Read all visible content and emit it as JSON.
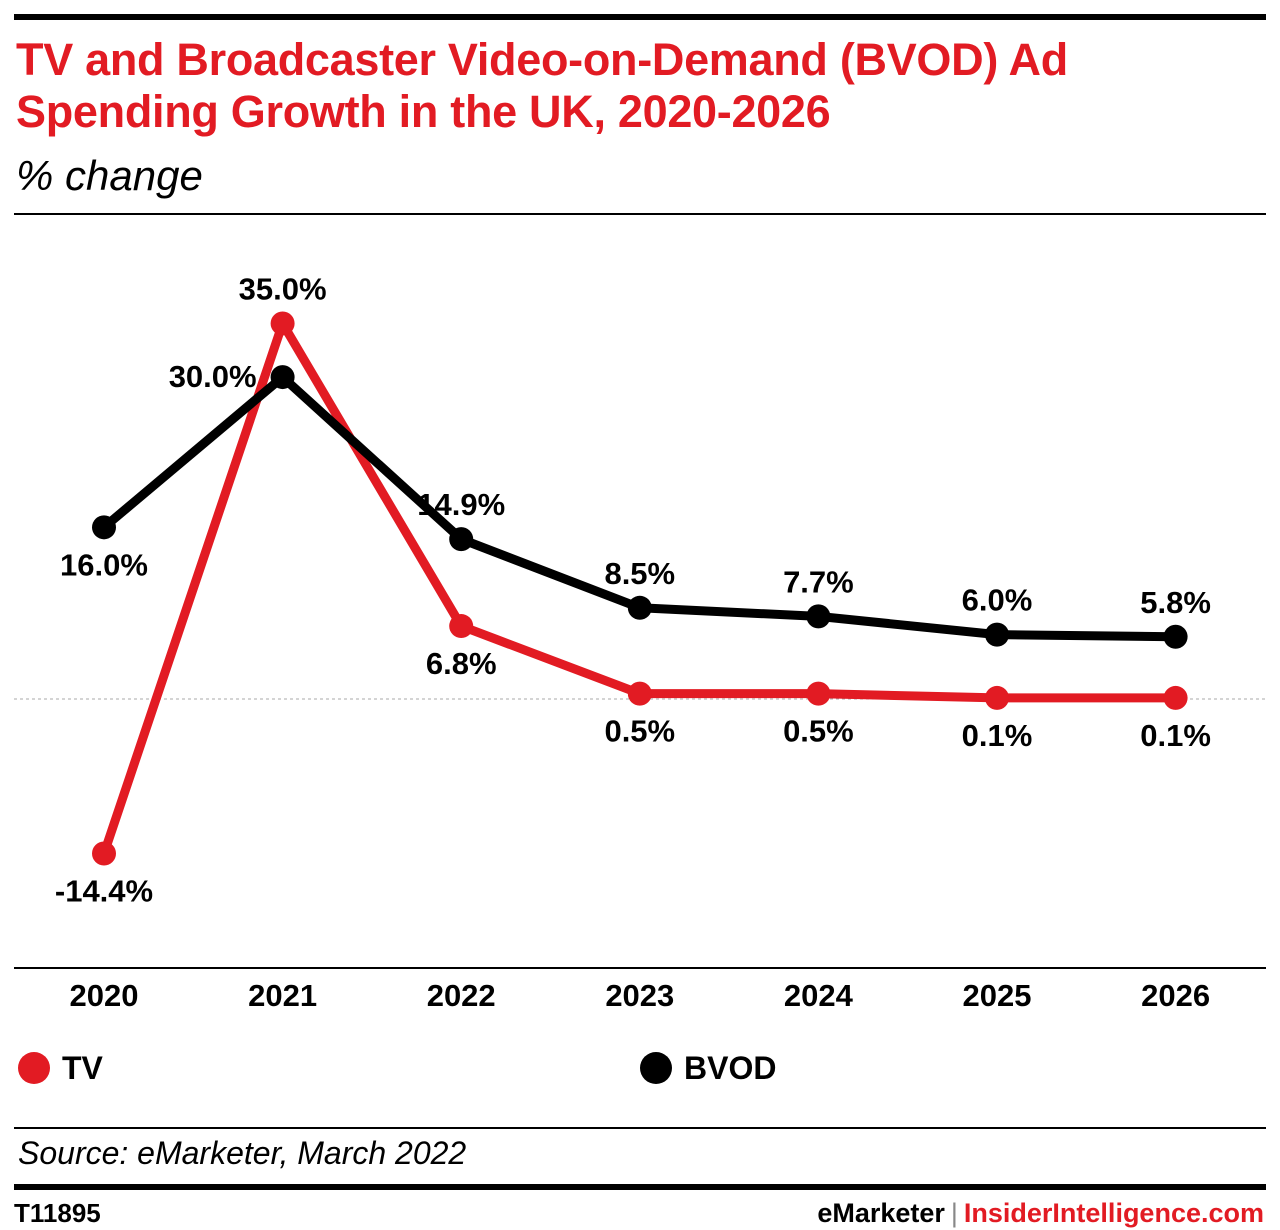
{
  "header": {
    "title": "TV and Broadcaster Video-on-Demand (BVOD) Ad Spending Growth in the UK, 2020-2026",
    "subtitle": "% change"
  },
  "colors": {
    "title": "#e21b23",
    "tv": "#e21b23",
    "bvod": "#000000",
    "baseline": "#aaaaaa"
  },
  "chart_data": {
    "type": "line",
    "title": "TV and Broadcaster Video-on-Demand (BVOD) Ad Spending Growth in the UK, 2020-2026",
    "subtitle": "% change",
    "categories": [
      "2020",
      "2021",
      "2022",
      "2023",
      "2024",
      "2025",
      "2026"
    ],
    "series": [
      {
        "name": "TV",
        "values": [
          -14.4,
          35.0,
          6.8,
          0.5,
          0.5,
          0.1,
          0.1
        ],
        "labels": [
          "-14.4%",
          "35.0%",
          "6.8%",
          "0.5%",
          "0.5%",
          "0.1%",
          "0.1%"
        ]
      },
      {
        "name": "BVOD",
        "values": [
          16.0,
          30.0,
          14.9,
          8.5,
          7.7,
          6.0,
          5.8
        ],
        "labels": [
          "16.0%",
          "30.0%",
          "14.9%",
          "8.5%",
          "7.7%",
          "6.0%",
          "5.8%"
        ]
      }
    ],
    "ylim": [
      -25,
      40
    ],
    "grid": false,
    "legend": "bottom"
  },
  "footer": {
    "source": "Source: eMarketer, March 2022",
    "chart_id": "T11895",
    "brand_left": "eMarketer",
    "brand_sep": "|",
    "brand_right": "InsiderIntelligence.com"
  }
}
